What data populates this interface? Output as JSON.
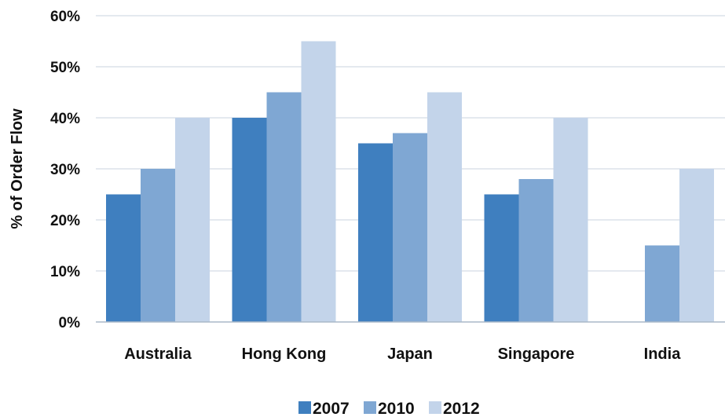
{
  "chart_data": {
    "type": "bar",
    "title": "",
    "xlabel": "",
    "ylabel": "% of Order Flow",
    "ylim": [
      0,
      60
    ],
    "yticks": [
      0,
      10,
      20,
      30,
      40,
      50,
      60
    ],
    "ytick_labels": [
      "0%",
      "10%",
      "20%",
      "30%",
      "40%",
      "50%",
      "60%"
    ],
    "grid": true,
    "legend_position": "bottom",
    "categories": [
      "Australia",
      "Hong Kong",
      "Japan",
      "Singapore",
      "India"
    ],
    "series": [
      {
        "name": "2007",
        "color": "#3f7fbf",
        "values": [
          25,
          40,
          35,
          25,
          null
        ]
      },
      {
        "name": "2010",
        "color": "#7fa7d3",
        "values": [
          30,
          45,
          37,
          28,
          15
        ]
      },
      {
        "name": "2012",
        "color": "#c3d4ea",
        "values": [
          40,
          55,
          45,
          40,
          30
        ]
      }
    ]
  }
}
